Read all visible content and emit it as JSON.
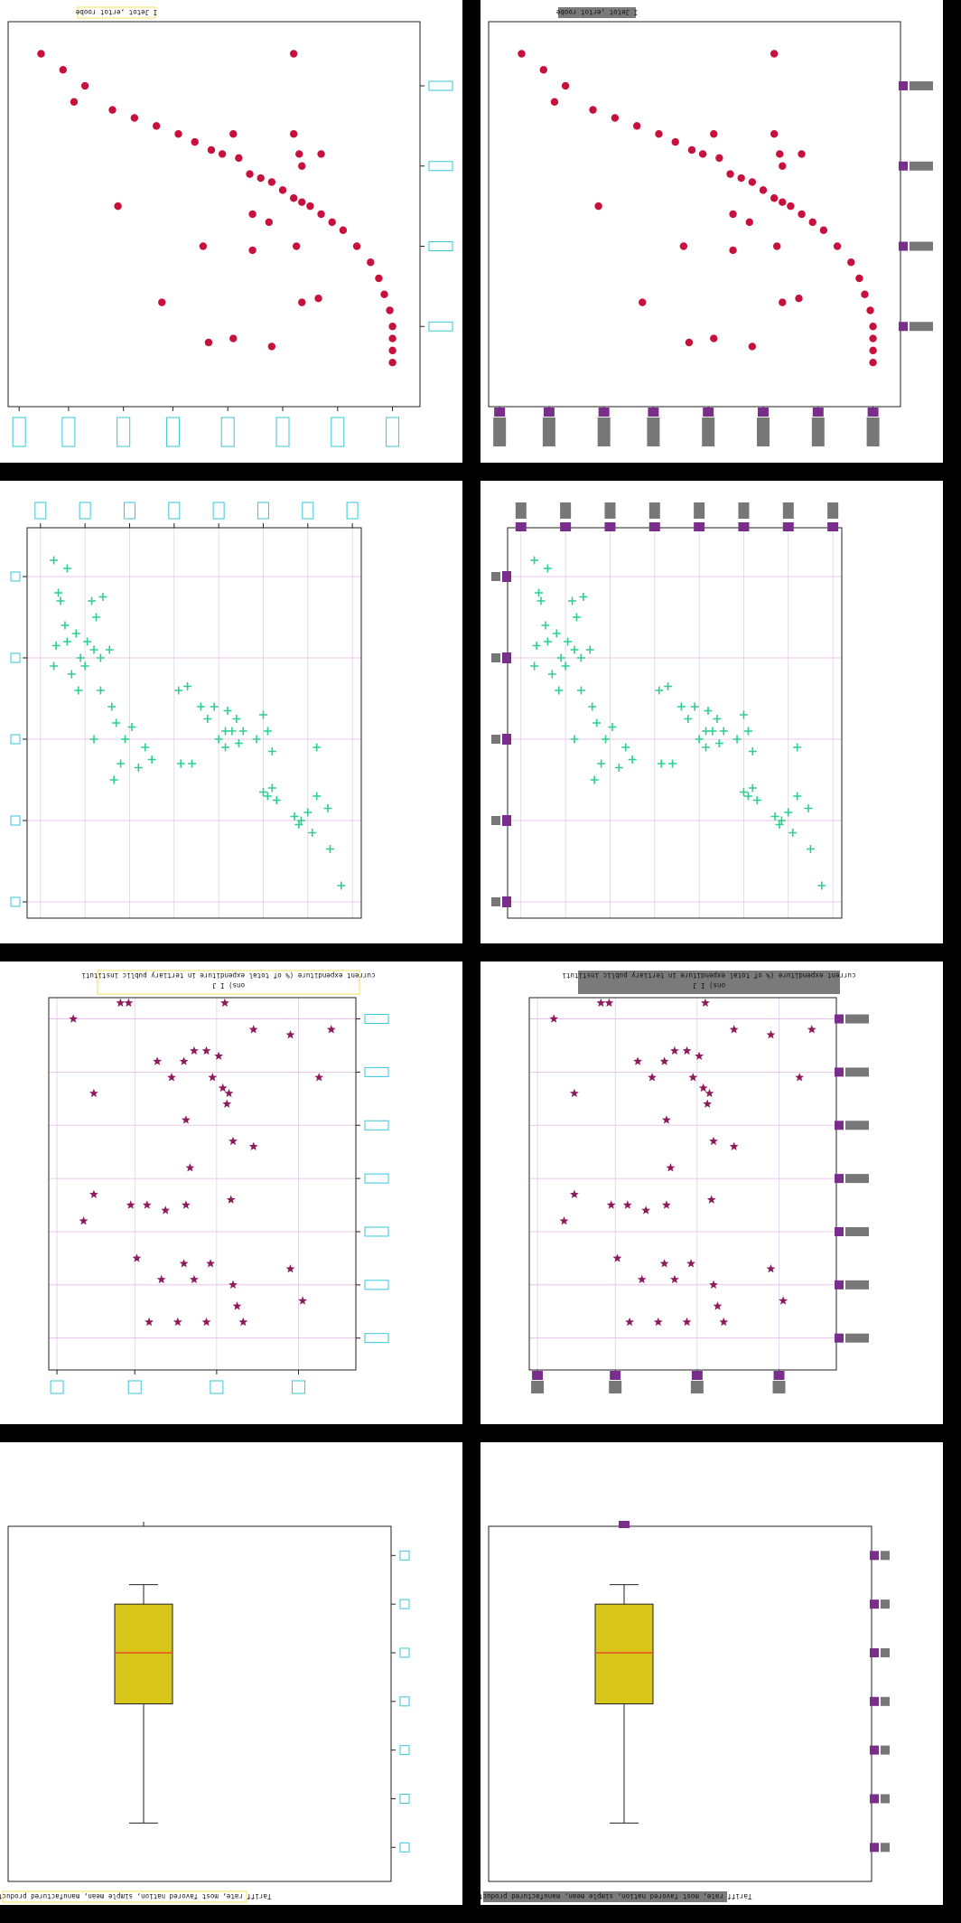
{
  "chart_data": [
    {
      "type": "scatter",
      "title": "I Jetot ,ertot roobe",
      "xlabel": "",
      "ylabel": "",
      "marker": "circle",
      "color": "#c8103c",
      "xlim": [
        0,
        7.5
      ],
      "ylim": [
        0,
        4.8
      ],
      "xticks": [
        0.2,
        1.1,
        2.1,
        3.0,
        4.0,
        5.0,
        6.0,
        7.0
      ],
      "yticks": [
        1,
        2,
        3,
        4
      ],
      "points": [
        [
          0.6,
          4.4
        ],
        [
          1.0,
          4.2
        ],
        [
          1.4,
          4.0
        ],
        [
          1.2,
          3.8
        ],
        [
          1.9,
          3.7
        ],
        [
          2.3,
          3.6
        ],
        [
          2.7,
          3.5
        ],
        [
          3.1,
          3.4
        ],
        [
          3.4,
          3.3
        ],
        [
          3.7,
          3.2
        ],
        [
          3.9,
          3.15
        ],
        [
          4.2,
          3.1
        ],
        [
          4.4,
          2.9
        ],
        [
          4.6,
          2.85
        ],
        [
          4.8,
          2.8
        ],
        [
          5.0,
          2.7
        ],
        [
          5.2,
          2.6
        ],
        [
          5.35,
          2.55
        ],
        [
          5.5,
          2.5
        ],
        [
          5.7,
          2.4
        ],
        [
          5.9,
          2.3
        ],
        [
          6.1,
          2.2
        ],
        [
          6.35,
          2.0
        ],
        [
          6.6,
          1.8
        ],
        [
          6.75,
          1.6
        ],
        [
          6.85,
          1.4
        ],
        [
          6.95,
          1.2
        ],
        [
          7.0,
          1.0
        ],
        [
          7.0,
          0.85
        ],
        [
          7.0,
          0.7
        ],
        [
          7.0,
          0.55
        ],
        [
          5.2,
          4.4
        ],
        [
          5.2,
          3.4
        ],
        [
          5.3,
          3.15
        ],
        [
          5.7,
          3.15
        ],
        [
          5.35,
          3.0
        ],
        [
          4.1,
          3.4
        ],
        [
          2.0,
          2.5
        ],
        [
          4.45,
          2.4
        ],
        [
          4.75,
          2.3
        ],
        [
          3.55,
          2.0
        ],
        [
          4.45,
          1.95
        ],
        [
          5.25,
          2.0
        ],
        [
          2.8,
          1.3
        ],
        [
          5.35,
          1.3
        ],
        [
          5.65,
          1.35
        ],
        [
          3.65,
          0.8
        ],
        [
          4.1,
          0.85
        ],
        [
          4.8,
          0.75
        ]
      ]
    },
    {
      "type": "scatter",
      "title": "",
      "xlabel": "",
      "ylabel": "",
      "marker": "plus",
      "color": "#2ecf8e",
      "xlim": [
        0,
        7.5
      ],
      "ylim": [
        0,
        4.8
      ],
      "xticks": [
        0.3,
        1.3,
        2.3,
        3.3,
        4.3,
        5.3,
        6.3,
        7.3
      ],
      "yticks": [
        0.2,
        1.2,
        2.2,
        3.2,
        4.2
      ],
      "points": [
        [
          0.6,
          4.4
        ],
        [
          0.9,
          4.3
        ],
        [
          0.7,
          4.0
        ],
        [
          0.75,
          3.9
        ],
        [
          0.85,
          3.6
        ],
        [
          0.9,
          3.4
        ],
        [
          1.1,
          3.5
        ],
        [
          1.35,
          3.4
        ],
        [
          1.55,
          3.7
        ],
        [
          1.5,
          3.3
        ],
        [
          1.65,
          3.2
        ],
        [
          1.45,
          3.9
        ],
        [
          1.7,
          3.95
        ],
        [
          1.85,
          3.3
        ],
        [
          1.2,
          3.2
        ],
        [
          1.3,
          3.1
        ],
        [
          1.0,
          3.0
        ],
        [
          0.65,
          3.35
        ],
        [
          0.6,
          3.1
        ],
        [
          1.15,
          2.8
        ],
        [
          1.65,
          2.8
        ],
        [
          1.9,
          2.6
        ],
        [
          2.0,
          2.4
        ],
        [
          2.35,
          2.35
        ],
        [
          2.2,
          2.2
        ],
        [
          2.65,
          2.1
        ],
        [
          1.5,
          2.2
        ],
        [
          2.1,
          1.9
        ],
        [
          2.8,
          1.95
        ],
        [
          2.5,
          1.85
        ],
        [
          3.45,
          1.9
        ],
        [
          3.7,
          1.9
        ],
        [
          1.95,
          1.7
        ],
        [
          3.4,
          2.8
        ],
        [
          3.6,
          2.85
        ],
        [
          3.9,
          2.6
        ],
        [
          4.2,
          2.6
        ],
        [
          4.05,
          2.45
        ],
        [
          4.5,
          2.55
        ],
        [
          4.7,
          2.45
        ],
        [
          4.6,
          2.3
        ],
        [
          4.3,
          2.2
        ],
        [
          4.45,
          2.3
        ],
        [
          4.85,
          2.3
        ],
        [
          5.3,
          2.5
        ],
        [
          5.4,
          2.3
        ],
        [
          5.15,
          2.2
        ],
        [
          5.5,
          2.05
        ],
        [
          4.75,
          2.15
        ],
        [
          4.45,
          2.1
        ],
        [
          6.5,
          2.1
        ],
        [
          5.3,
          1.55
        ],
        [
          5.5,
          1.6
        ],
        [
          5.4,
          1.5
        ],
        [
          5.6,
          1.45
        ],
        [
          6.0,
          1.25
        ],
        [
          6.15,
          1.2
        ],
        [
          6.3,
          1.3
        ],
        [
          6.1,
          1.15
        ],
        [
          6.4,
          1.05
        ],
        [
          6.5,
          1.5
        ],
        [
          6.75,
          1.35
        ],
        [
          6.8,
          0.85
        ],
        [
          7.05,
          0.4
        ]
      ]
    },
    {
      "type": "scatter",
      "title": "current expenditure (% of total expenditure in tertiary public institutions) I J",
      "xlabel": "",
      "ylabel": "",
      "marker": "star",
      "color": "#8e1a5c",
      "xlim": [
        0,
        7.5
      ],
      "ylim": [
        0,
        7
      ],
      "xticks": [
        0.2,
        2.1,
        4.1,
        6.1
      ],
      "yticks": [
        0.6,
        1.6,
        2.6,
        3.6,
        4.6,
        5.6,
        6.6
      ],
      "points": [
        [
          0.6,
          6.6
        ],
        [
          1.75,
          6.9
        ],
        [
          1.95,
          6.9
        ],
        [
          4.3,
          6.9
        ],
        [
          5.0,
          6.4
        ],
        [
          5.9,
          6.3
        ],
        [
          6.9,
          6.4
        ],
        [
          6.6,
          5.5
        ],
        [
          2.65,
          5.8
        ],
        [
          3.0,
          5.5
        ],
        [
          3.3,
          5.8
        ],
        [
          3.85,
          6.0
        ],
        [
          4.15,
          5.9
        ],
        [
          3.55,
          6.0
        ],
        [
          4.0,
          5.5
        ],
        [
          4.25,
          5.3
        ],
        [
          4.4,
          5.2
        ],
        [
          4.35,
          5.0
        ],
        [
          3.35,
          4.7
        ],
        [
          4.5,
          4.3
        ],
        [
          5.0,
          4.2
        ],
        [
          1.1,
          5.2
        ],
        [
          1.1,
          3.3
        ],
        [
          0.85,
          2.8
        ],
        [
          2.0,
          3.1
        ],
        [
          2.4,
          3.1
        ],
        [
          2.85,
          3.0
        ],
        [
          3.35,
          3.1
        ],
        [
          3.45,
          3.8
        ],
        [
          4.45,
          3.2
        ],
        [
          2.15,
          2.1
        ],
        [
          2.75,
          1.7
        ],
        [
          3.3,
          2.0
        ],
        [
          3.55,
          1.7
        ],
        [
          3.95,
          2.0
        ],
        [
          4.5,
          1.6
        ],
        [
          4.6,
          1.2
        ],
        [
          5.9,
          1.9
        ],
        [
          6.2,
          1.3
        ],
        [
          2.45,
          0.9
        ],
        [
          3.15,
          0.9
        ],
        [
          3.85,
          0.9
        ],
        [
          4.75,
          0.9
        ]
      ]
    },
    {
      "type": "boxplot",
      "title": "",
      "xlabel": "",
      "ylabel": "Tariff rate, most favored nation, simple mean, manufactured products (%)",
      "color": "#d9c61a",
      "median_color": "#e44d26",
      "ylim": [
        0,
        7.3
      ],
      "yticks": [
        0.7,
        1.7,
        2.7,
        3.7,
        4.7,
        5.7,
        6.7
      ],
      "box": {
        "whisker_low": 1.2,
        "q1": 3.65,
        "median": 4.7,
        "q3": 5.7,
        "whisker_high": 6.1
      }
    }
  ]
}
